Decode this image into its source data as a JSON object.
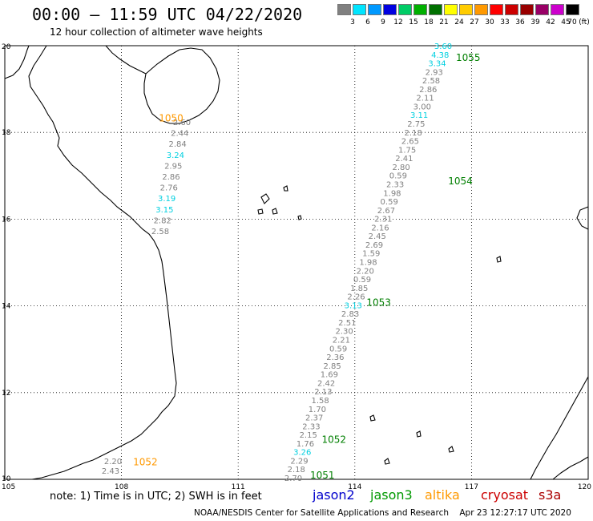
{
  "header": {
    "title": "00:00 – 11:59 UTC 04/22/2020",
    "subtitle": "12 hour collection of altimeter wave heights"
  },
  "legend": {
    "unit": "(ft)",
    "bins": [
      {
        "label": "3",
        "color": "#808080"
      },
      {
        "label": "6",
        "color": "#00e5ff"
      },
      {
        "label": "9",
        "color": "#0099ff"
      },
      {
        "label": "12",
        "color": "#0000e0"
      },
      {
        "label": "15",
        "color": "#00cc66"
      },
      {
        "label": "18",
        "color": "#00b000"
      },
      {
        "label": "21",
        "color": "#007000"
      },
      {
        "label": "24",
        "color": "#ffff00"
      },
      {
        "label": "27",
        "color": "#ffcc00"
      },
      {
        "label": "30",
        "color": "#ff9900"
      },
      {
        "label": "33",
        "color": "#ff0000"
      },
      {
        "label": "36",
        "color": "#cc0000"
      },
      {
        "label": "39",
        "color": "#990000"
      },
      {
        "label": "42",
        "color": "#990066"
      },
      {
        "label": "45",
        "color": "#cc00cc"
      },
      {
        "label": "70",
        "color": "#000000"
      }
    ]
  },
  "axes": {
    "lon_ticks": [
      "105",
      "108",
      "111",
      "114",
      "117",
      "120"
    ],
    "lat_ticks": [
      "20",
      "18",
      "16",
      "14",
      "12",
      "10"
    ]
  },
  "colors": {
    "gray": "#808080",
    "cyan": "#00d0e0",
    "green": "#007f00",
    "orange": "#ff9900"
  },
  "passes": [
    {
      "id": "1050",
      "color": "orange",
      "lon": 108.96,
      "lat": 18.25
    },
    {
      "id": "1052",
      "color": "orange",
      "lon": 108.3,
      "lat": 10.32
    },
    {
      "id": "1055",
      "color": "green",
      "lon": 116.6,
      "lat": 19.65
    },
    {
      "id": "1054",
      "color": "green",
      "lon": 116.4,
      "lat": 16.8
    },
    {
      "id": "1053",
      "color": "green",
      "lon": 114.3,
      "lat": 14.0
    },
    {
      "id": "1052",
      "color": "green",
      "lon": 113.15,
      "lat": 10.84
    },
    {
      "id": "1051",
      "color": "green",
      "lon": 112.85,
      "lat": 10.02
    }
  ],
  "track_1050": [
    {
      "v": "2.60",
      "c": "gray"
    },
    {
      "v": "2.44",
      "c": "gray"
    },
    {
      "v": "2.84",
      "c": "gray"
    },
    {
      "v": "3.24",
      "c": "cyan"
    },
    {
      "v": "2.95",
      "c": "gray"
    },
    {
      "v": "2.86",
      "c": "gray"
    },
    {
      "v": "2.76",
      "c": "gray"
    },
    {
      "v": "3.19",
      "c": "cyan"
    },
    {
      "v": "3.15",
      "c": "cyan"
    },
    {
      "v": "2.82",
      "c": "gray"
    },
    {
      "v": "2.58",
      "c": "gray"
    }
  ],
  "track_1052o": [
    {
      "v": "2.20",
      "c": "gray"
    },
    {
      "v": "2.43",
      "c": "gray"
    }
  ],
  "track_east": [
    {
      "v": "3.60",
      "c": "cyan"
    },
    {
      "v": "4.38",
      "c": "cyan"
    },
    {
      "v": "3.34",
      "c": "cyan"
    },
    {
      "v": "2.93",
      "c": "gray"
    },
    {
      "v": "2.58",
      "c": "gray"
    },
    {
      "v": "2.86",
      "c": "gray"
    },
    {
      "v": "2.11",
      "c": "gray"
    },
    {
      "v": "3.00",
      "c": "gray"
    },
    {
      "v": "3.11",
      "c": "cyan"
    },
    {
      "v": "2.75",
      "c": "gray"
    },
    {
      "v": "2.18",
      "c": "gray"
    },
    {
      "v": "2.65",
      "c": "gray"
    },
    {
      "v": "1.75",
      "c": "gray"
    },
    {
      "v": "2.41",
      "c": "gray"
    },
    {
      "v": "2.80",
      "c": "gray"
    },
    {
      "v": "0.59",
      "c": "gray"
    },
    {
      "v": "2.33",
      "c": "gray"
    },
    {
      "v": "1.98",
      "c": "gray"
    },
    {
      "v": "0.59",
      "c": "gray"
    },
    {
      "v": "2.67",
      "c": "gray"
    },
    {
      "v": "2.31",
      "c": "gray"
    },
    {
      "v": "2.16",
      "c": "gray"
    },
    {
      "v": "2.45",
      "c": "gray"
    },
    {
      "v": "2.69",
      "c": "gray"
    },
    {
      "v": "1.59",
      "c": "gray"
    },
    {
      "v": "1.98",
      "c": "gray"
    },
    {
      "v": "2.20",
      "c": "gray"
    },
    {
      "v": "0.59",
      "c": "gray"
    },
    {
      "v": "1.85",
      "c": "gray"
    },
    {
      "v": "2.26",
      "c": "gray"
    },
    {
      "v": "3.13",
      "c": "cyan"
    },
    {
      "v": "2.83",
      "c": "gray"
    },
    {
      "v": "2.51",
      "c": "gray"
    },
    {
      "v": "2.30",
      "c": "gray"
    },
    {
      "v": "2.21",
      "c": "gray"
    },
    {
      "v": "0.59",
      "c": "gray"
    },
    {
      "v": "2.36",
      "c": "gray"
    },
    {
      "v": "2.85",
      "c": "gray"
    },
    {
      "v": "1.69",
      "c": "gray"
    },
    {
      "v": "2.42",
      "c": "gray"
    },
    {
      "v": "2.13",
      "c": "gray"
    },
    {
      "v": "1.58",
      "c": "gray"
    },
    {
      "v": "1.70",
      "c": "gray"
    },
    {
      "v": "2.37",
      "c": "gray"
    },
    {
      "v": "2.33",
      "c": "gray"
    },
    {
      "v": "2.15",
      "c": "gray"
    },
    {
      "v": "1.76",
      "c": "gray"
    },
    {
      "v": "3.26",
      "c": "cyan"
    },
    {
      "v": "2.29",
      "c": "gray"
    },
    {
      "v": "2.18",
      "c": "gray"
    },
    {
      "v": "2.70",
      "c": "gray"
    }
  ],
  "footer": {
    "note": "note:  1) Time is in UTC;  2) SWH is in feet",
    "satellites": [
      {
        "name": "jason2",
        "color": "#0000cc"
      },
      {
        "name": "jason3",
        "color": "#009900"
      },
      {
        "name": "altika",
        "color": "#ff9900"
      },
      {
        "name": "cryosat",
        "color": "#cc0000"
      },
      {
        "name": "s3a",
        "color": "#aa0000"
      }
    ],
    "credit": "NOAA/NESDIS Center for Satellite Applications and Research    Apr 23 12:27:17 UTC 2020"
  }
}
